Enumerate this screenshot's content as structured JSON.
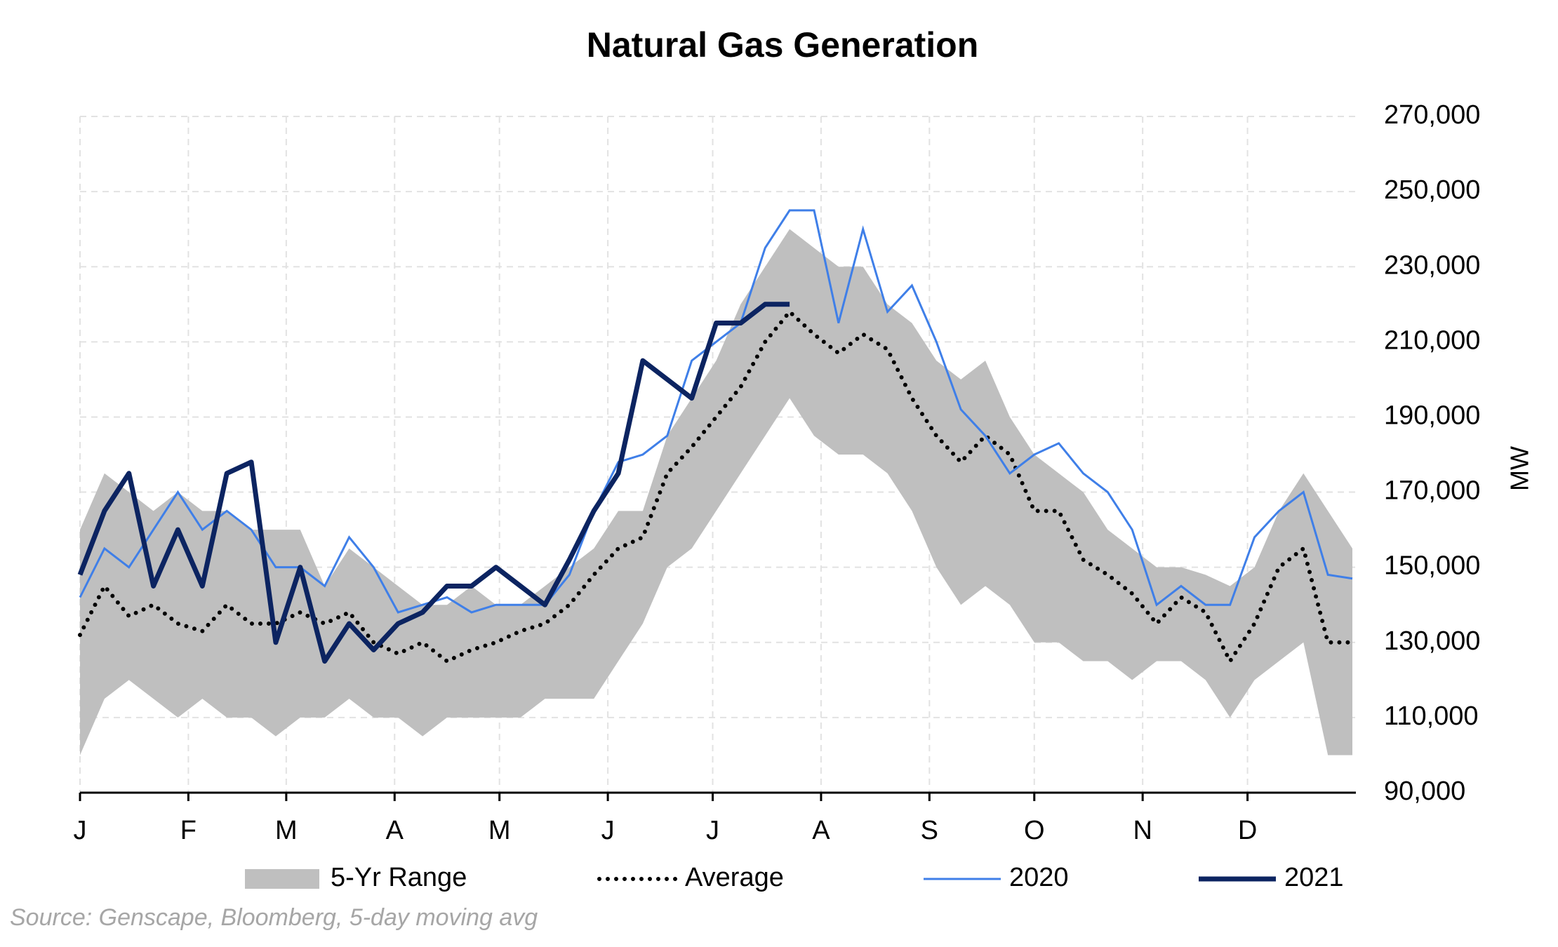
{
  "chart_data": {
    "type": "line",
    "title": "Natural Gas Generation",
    "y_label": "MW",
    "source": "Source: Genscape, Bloomberg, 5-day moving avg",
    "x": [
      1,
      8,
      15,
      22,
      29,
      36,
      43,
      50,
      57,
      64,
      71,
      78,
      85,
      92,
      99,
      106,
      113,
      120,
      127,
      134,
      141,
      148,
      155,
      162,
      169,
      176,
      183,
      190,
      197,
      204,
      211,
      218,
      225,
      232,
      239,
      246,
      253,
      260,
      267,
      274,
      281,
      288,
      295,
      302,
      309,
      316,
      323,
      330,
      337,
      344,
      351,
      358,
      365
    ],
    "xlim": [
      1,
      366
    ],
    "xticks": [
      {
        "value": 1,
        "label": "J"
      },
      {
        "value": 32,
        "label": "F"
      },
      {
        "value": 60,
        "label": "M"
      },
      {
        "value": 91,
        "label": "A"
      },
      {
        "value": 121,
        "label": "M"
      },
      {
        "value": 152,
        "label": "J"
      },
      {
        "value": 182,
        "label": "J"
      },
      {
        "value": 213,
        "label": "A"
      },
      {
        "value": 244,
        "label": "S"
      },
      {
        "value": 274,
        "label": "O"
      },
      {
        "value": 305,
        "label": "N"
      },
      {
        "value": 335,
        "label": "D"
      }
    ],
    "ylim": [
      90000,
      270000
    ],
    "yticks": [
      {
        "value": 90000,
        "label": "90,000"
      },
      {
        "value": 110000,
        "label": "110,000"
      },
      {
        "value": 130000,
        "label": "130,000"
      },
      {
        "value": 150000,
        "label": "150,000"
      },
      {
        "value": 170000,
        "label": "170,000"
      },
      {
        "value": 190000,
        "label": "190,000"
      },
      {
        "value": 210000,
        "label": "210,000"
      },
      {
        "value": 230000,
        "label": "230,000"
      },
      {
        "value": 250000,
        "label": "250,000"
      },
      {
        "value": 270000,
        "label": "270,000"
      }
    ],
    "grid": true,
    "legend": "bottom",
    "series": [
      {
        "name": "5-Yr Range",
        "kind": "range",
        "color": "#bfbfbf",
        "low": [
          100000,
          115000,
          120000,
          115000,
          110000,
          115000,
          110000,
          110000,
          105000,
          110000,
          110000,
          115000,
          110000,
          110000,
          105000,
          110000,
          110000,
          110000,
          110000,
          115000,
          115000,
          115000,
          125000,
          135000,
          150000,
          155000,
          165000,
          175000,
          185000,
          195000,
          185000,
          180000,
          180000,
          175000,
          165000,
          150000,
          140000,
          145000,
          140000,
          130000,
          130000,
          125000,
          125000,
          120000,
          125000,
          125000,
          120000,
          110000,
          120000,
          125000,
          130000,
          100000,
          100000
        ],
        "high": [
          160000,
          175000,
          170000,
          165000,
          170000,
          165000,
          165000,
          160000,
          160000,
          160000,
          145000,
          155000,
          150000,
          145000,
          140000,
          140000,
          145000,
          140000,
          140000,
          145000,
          150000,
          155000,
          165000,
          165000,
          185000,
          195000,
          205000,
          220000,
          230000,
          240000,
          235000,
          230000,
          230000,
          220000,
          215000,
          205000,
          200000,
          205000,
          190000,
          180000,
          175000,
          170000,
          160000,
          155000,
          150000,
          150000,
          148000,
          145000,
          150000,
          165000,
          175000,
          165000,
          155000
        ]
      },
      {
        "name": "Average",
        "kind": "dotted",
        "color": "#000000",
        "values": [
          132000,
          145000,
          137000,
          140000,
          135000,
          133000,
          140000,
          135000,
          135000,
          138000,
          135000,
          138000,
          130000,
          127000,
          130000,
          125000,
          128000,
          130000,
          133000,
          135000,
          140000,
          148000,
          155000,
          158000,
          175000,
          182000,
          190000,
          198000,
          210000,
          218000,
          212000,
          207000,
          212000,
          208000,
          195000,
          185000,
          178000,
          185000,
          180000,
          165000,
          165000,
          152000,
          148000,
          143000,
          135000,
          142000,
          138000,
          125000,
          135000,
          150000,
          155000,
          130000,
          130000
        ]
      },
      {
        "name": "2020",
        "kind": "thin",
        "color": "#3f7fe8",
        "values": [
          142000,
          155000,
          150000,
          160000,
          170000,
          160000,
          165000,
          160000,
          150000,
          150000,
          145000,
          158000,
          150000,
          138000,
          140000,
          142000,
          138000,
          140000,
          140000,
          140000,
          148000,
          165000,
          178000,
          180000,
          185000,
          205000,
          210000,
          215000,
          235000,
          245000,
          245000,
          215000,
          240000,
          218000,
          225000,
          210000,
          192000,
          185000,
          175000,
          180000,
          183000,
          175000,
          170000,
          160000,
          140000,
          145000,
          140000,
          140000,
          158000,
          165000,
          170000,
          148000,
          147000
        ]
      },
      {
        "name": "2021",
        "kind": "thick",
        "color": "#0c2461",
        "values": [
          148000,
          165000,
          175000,
          145000,
          160000,
          145000,
          175000,
          178000,
          130000,
          150000,
          125000,
          135000,
          128000,
          135000,
          138000,
          145000,
          145000,
          150000,
          145000,
          140000,
          152000,
          165000,
          175000,
          205000,
          200000,
          195000,
          215000,
          215000,
          220000,
          220000,
          null,
          null,
          null,
          null,
          null,
          null,
          null,
          null,
          null,
          null,
          null,
          null,
          null,
          null,
          null,
          null,
          null,
          null,
          null,
          null,
          null,
          null,
          null
        ]
      }
    ]
  }
}
